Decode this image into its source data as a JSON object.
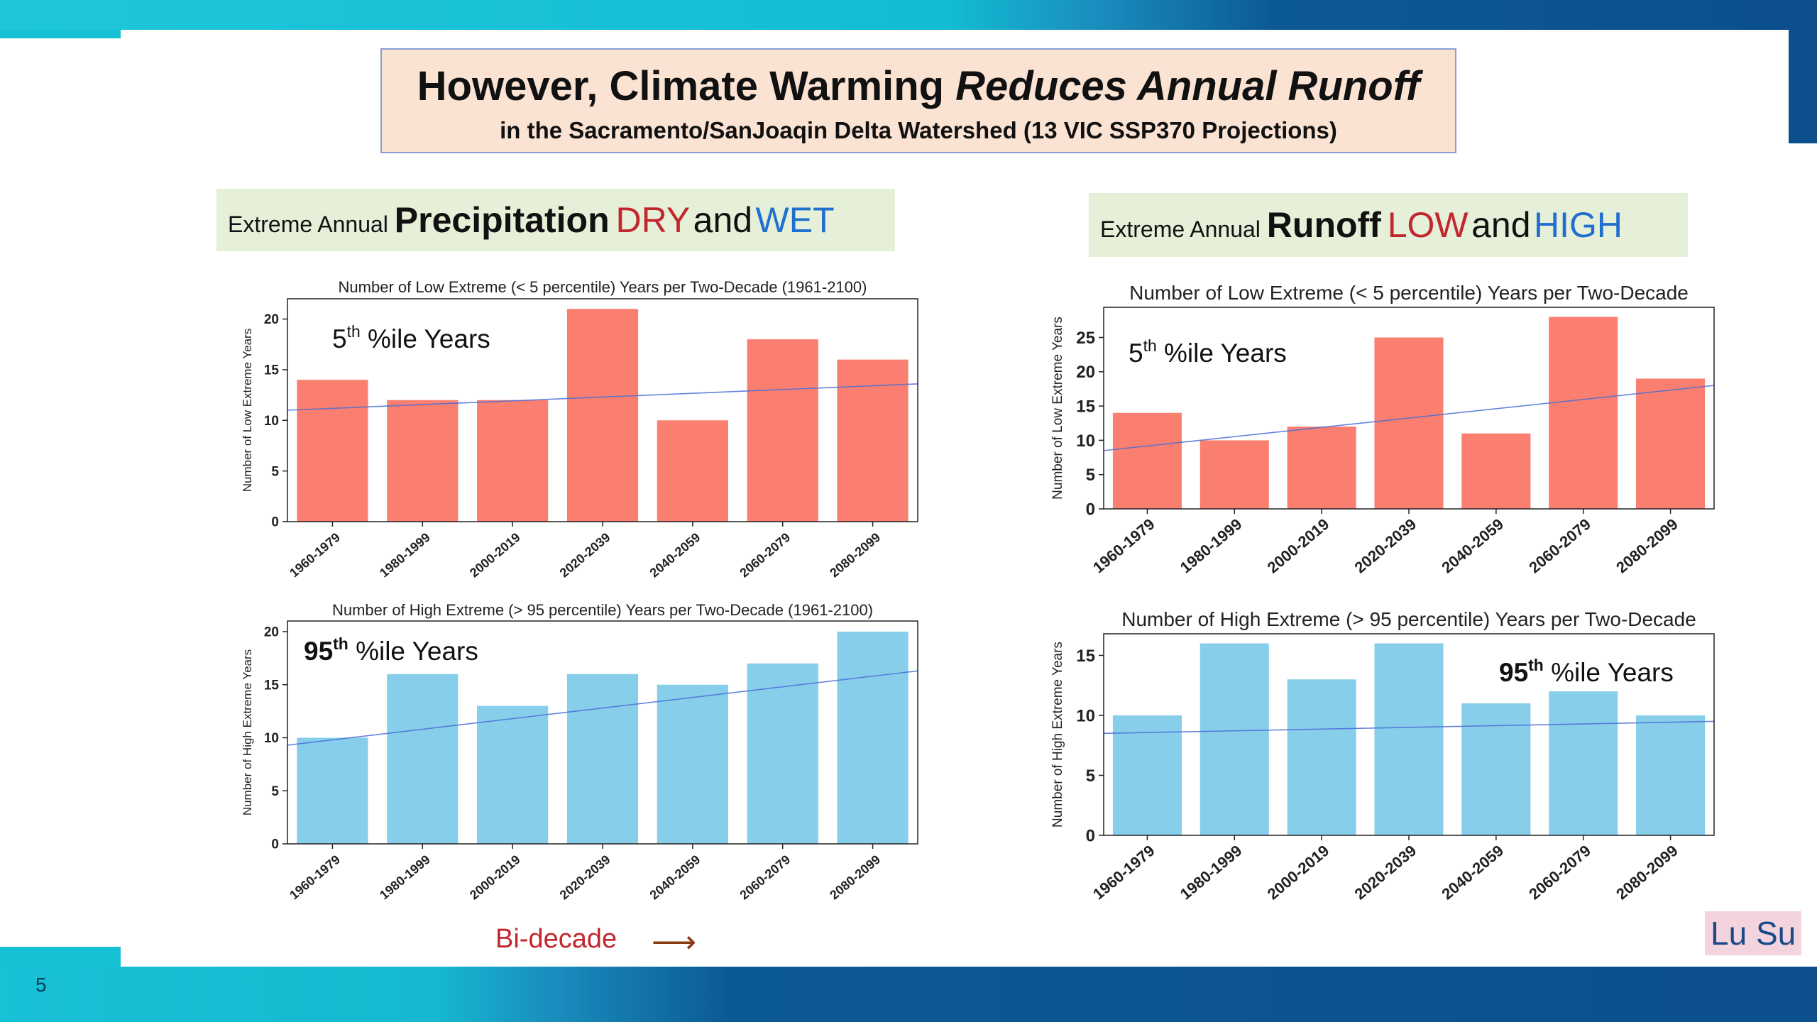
{
  "slide": {
    "page_number": "5",
    "title_main_prefix": "However, Climate Warming ",
    "title_main_emphasis": "Reduces Annual Runoff",
    "title_sub": "in the Sacramento/SanJoaqin Delta Watershed (13 VIC SSP370 Projections)",
    "precip_head": {
      "prefix": "Extreme Annual ",
      "bold": "Precipitation",
      "red": "DRY",
      "and": "and",
      "blue": "WET"
    },
    "runoff_head": {
      "prefix": "Extreme Annual ",
      "bold": "Runoff",
      "red": "LOW",
      "and": "and",
      "blue": "HIGH"
    },
    "bi_decade": "Bi-decade",
    "author": "Lu Su",
    "colors": {
      "low_bar": "#fa7f70",
      "high_bar": "#87ceeb",
      "trend": "#4a6fd6",
      "red": "#c1272d",
      "blue": "#1f6fd0"
    }
  },
  "chart_data": [
    {
      "id": "precip-low",
      "type": "bar",
      "title": "Number of Low Extreme (< 5 percentile) Years per Two-Decade (1961-2100)",
      "ylabel": "Number of Low Extreme Years",
      "annotation": {
        "base": "5",
        "sup": "th",
        "rest": " %ile Years"
      },
      "categories": [
        "1960-1979",
        "1980-1999",
        "2000-2019",
        "2020-2039",
        "2040-2059",
        "2060-2079",
        "2080-2099"
      ],
      "values": [
        14,
        12,
        12,
        21,
        10,
        18,
        16
      ],
      "yticks": [
        0,
        5,
        10,
        15,
        20
      ],
      "ylim": [
        0,
        22
      ],
      "trend": [
        11.0,
        13.6
      ],
      "color": "#fa7f70"
    },
    {
      "id": "precip-high",
      "type": "bar",
      "title": "Number of High Extreme (> 95 percentile) Years per Two-Decade (1961-2100)",
      "ylabel": "Number of High Extreme Years",
      "annotation": {
        "base": "95",
        "sup": "th",
        "rest": " %ile Years"
      },
      "categories": [
        "1960-1979",
        "1980-1999",
        "2000-2019",
        "2020-2039",
        "2040-2059",
        "2060-2079",
        "2080-2099"
      ],
      "values": [
        10,
        16,
        13,
        16,
        15,
        17,
        20
      ],
      "yticks": [
        0,
        5,
        10,
        15,
        20
      ],
      "ylim": [
        0,
        21
      ],
      "trend": [
        9.3,
        16.3
      ],
      "color": "#87ceeb"
    },
    {
      "id": "runoff-low",
      "type": "bar",
      "title": "Number of Low Extreme (< 5 percentile) Years per Two-Decade",
      "ylabel": "Number of Low Extreme Years",
      "annotation": {
        "base": "5",
        "sup": "th",
        "rest": " %ile Years"
      },
      "categories": [
        "1960-1979",
        "1980-1999",
        "2000-2019",
        "2020-2039",
        "2040-2059",
        "2060-2079",
        "2080-2099"
      ],
      "values": [
        14,
        10,
        12,
        25,
        11,
        28,
        19
      ],
      "yticks": [
        0,
        5,
        10,
        15,
        20,
        25
      ],
      "ylim": [
        0,
        29.4
      ],
      "trend": [
        8.5,
        18.0
      ],
      "color": "#fa7f70"
    },
    {
      "id": "runoff-high",
      "type": "bar",
      "title": "Number of High Extreme (> 95 percentile) Years per Two-Decade",
      "ylabel": "Number of High Extreme Years",
      "annotation": {
        "base": "95",
        "sup": "th",
        "rest": " %ile Years"
      },
      "categories": [
        "1960-1979",
        "1980-1999",
        "2000-2019",
        "2020-2039",
        "2040-2059",
        "2060-2079",
        "2080-2099"
      ],
      "values": [
        10,
        16,
        13,
        16,
        11,
        12,
        10
      ],
      "yticks": [
        0,
        5,
        10,
        15
      ],
      "ylim": [
        0,
        16.8
      ],
      "trend": [
        8.5,
        9.5
      ],
      "color": "#87ceeb"
    }
  ]
}
